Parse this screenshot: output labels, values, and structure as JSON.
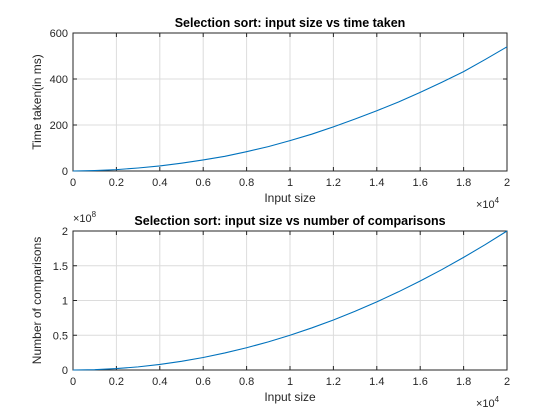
{
  "chart_data": [
    {
      "type": "line",
      "title": "Selection sort: input size vs time taken",
      "xlabel": "Input size",
      "ylabel": "Time taken(in ms)",
      "xlim": [
        0,
        20000
      ],
      "ylim": [
        0,
        600
      ],
      "x_ticks": [
        "0",
        "0.2",
        "0.4",
        "0.6",
        "0.8",
        "1",
        "1.2",
        "1.4",
        "1.6",
        "1.8",
        "2"
      ],
      "y_ticks": [
        "0",
        "200",
        "400",
        "600"
      ],
      "x_exponent": {
        "base": "×10",
        "power": "4"
      },
      "grid": true,
      "color": "#0072BD",
      "x": [
        0,
        1000,
        2000,
        3000,
        4000,
        5000,
        6000,
        7000,
        8000,
        9000,
        10000,
        11000,
        12000,
        13000,
        14000,
        15000,
        16000,
        17000,
        18000,
        19000,
        20000
      ],
      "y": [
        0,
        2,
        6,
        13,
        22,
        34,
        48,
        64,
        84,
        106,
        132,
        160,
        192,
        226,
        262,
        300,
        342,
        386,
        432,
        485,
        540
      ]
    },
    {
      "type": "line",
      "title": "Selection sort: input size vs number of comparisons",
      "xlabel": "Input size",
      "ylabel": "Number of comparisons",
      "xlim": [
        0,
        20000
      ],
      "ylim": [
        0,
        2
      ],
      "x_ticks": [
        "0",
        "0.2",
        "0.4",
        "0.6",
        "0.8",
        "1",
        "1.2",
        "1.4",
        "1.6",
        "1.8",
        "2"
      ],
      "y_ticks": [
        "0",
        "0.5",
        "1",
        "1.5",
        "2"
      ],
      "x_exponent": {
        "base": "×10",
        "power": "4"
      },
      "y_exponent": {
        "base": "×10",
        "power": "8"
      },
      "grid": true,
      "color": "#0072BD",
      "x": [
        0,
        1000,
        2000,
        3000,
        4000,
        5000,
        6000,
        7000,
        8000,
        9000,
        10000,
        11000,
        12000,
        13000,
        14000,
        15000,
        16000,
        17000,
        18000,
        19000,
        20000
      ],
      "y": [
        0,
        0.005,
        0.02,
        0.045,
        0.08,
        0.125,
        0.18,
        0.245,
        0.32,
        0.405,
        0.5,
        0.605,
        0.72,
        0.845,
        0.98,
        1.125,
        1.28,
        1.445,
        1.62,
        1.805,
        2.0
      ]
    }
  ]
}
